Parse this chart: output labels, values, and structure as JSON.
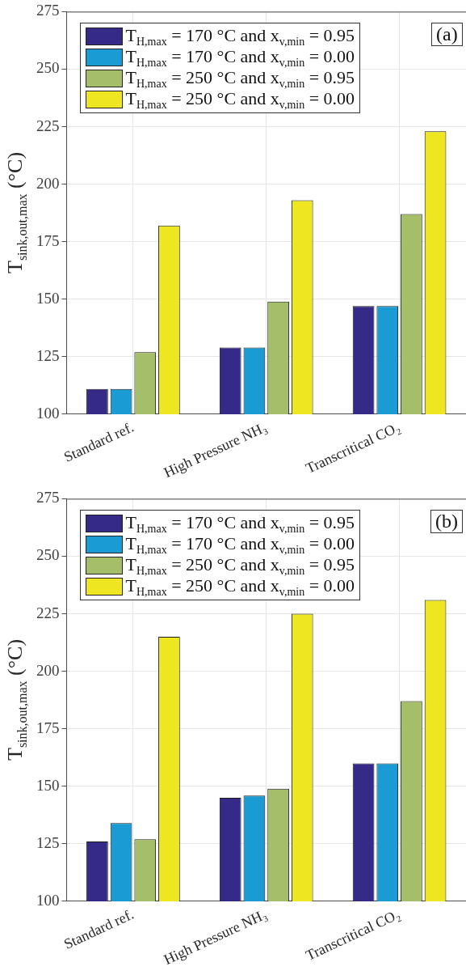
{
  "chart_data": [
    {
      "type": "bar",
      "ylabel": "T$_{sink,out,max}$  (°C)",
      "categories": [
        "Standard ref.",
        "High Pressure NH₃",
        "Transcritical CO₂"
      ],
      "ylim": [
        100,
        275
      ],
      "yticks": [
        100,
        125,
        150,
        175,
        200,
        225,
        250,
        275
      ],
      "grid": true,
      "legend": "top left",
      "annotations": [
        "(a)"
      ],
      "series": [
        {
          "name": "T$_{H,max}$ = 170 °C and x$_{v,min}$ = 0.95",
          "color": "#352a87",
          "values": [
            111,
            129,
            147
          ]
        },
        {
          "name": "T$_{H,max}$ = 170 °C and x$_{v,min}$ = 0.00",
          "color": "#1a9bd3",
          "values": [
            111,
            129,
            147
          ]
        },
        {
          "name": "T$_{H,max}$ = 250 °C and x$_{v,min}$ = 0.95",
          "color": "#a5be69",
          "values": [
            127,
            149,
            187
          ]
        },
        {
          "name": "T$_{H,max}$ = 250 °C and x$_{v,min}$ = 0.00",
          "color": "#eee620",
          "values": [
            182,
            193,
            223
          ]
        }
      ]
    },
    {
      "type": "bar",
      "ylabel": "T$_{sink,out,max}$  (°C)",
      "categories": [
        "Standard ref.",
        "High Pressure NH₃",
        "Transcritical CO₂"
      ],
      "ylim": [
        100,
        275
      ],
      "yticks": [
        100,
        125,
        150,
        175,
        200,
        225,
        250,
        275
      ],
      "grid": true,
      "legend": "top left",
      "annotations": [
        "(b)"
      ],
      "series": [
        {
          "name": "T$_{H,max}$ = 170 °C and x$_{v,min}$ = 0.95",
          "color": "#352a87",
          "values": [
            126,
            145,
            160
          ]
        },
        {
          "name": "T$_{H,max}$ = 170 °C and x$_{v,min}$ = 0.00",
          "color": "#1a9bd3",
          "values": [
            134,
            146,
            160
          ]
        },
        {
          "name": "T$_{H,max}$ = 250 °C and x$_{v,min}$ = 0.95",
          "color": "#a5be69",
          "values": [
            127,
            149,
            187
          ]
        },
        {
          "name": "T$_{H,max}$ = 250 °C and x$_{v,min}$ = 0.00",
          "color": "#eee620",
          "values": [
            215,
            225,
            231
          ]
        }
      ]
    }
  ]
}
